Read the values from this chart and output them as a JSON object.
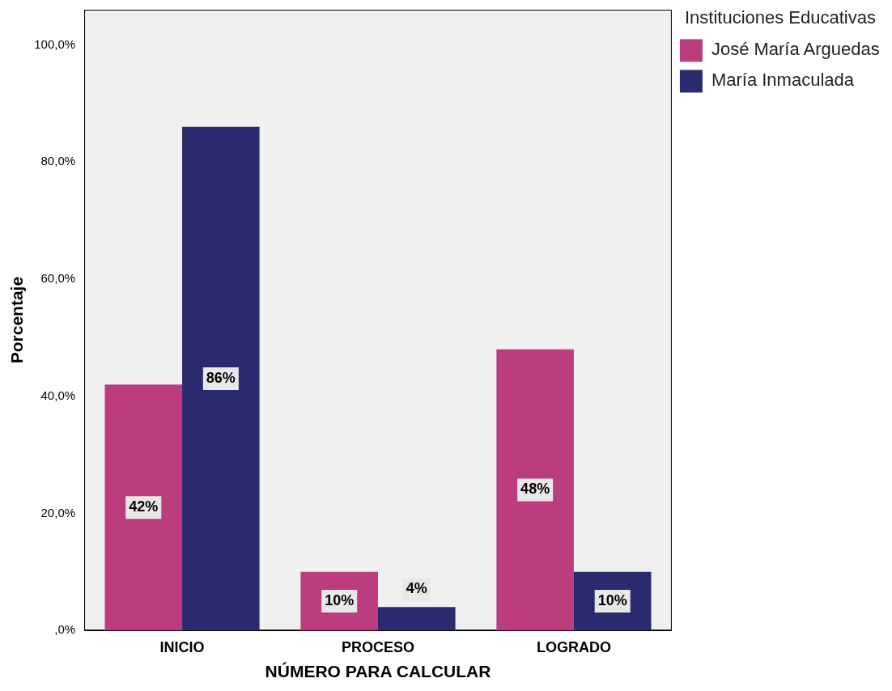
{
  "chart_data": {
    "type": "bar",
    "xlabel": "NÚMERO PARA CALCULAR",
    "ylabel": "Porcentaje",
    "legend_title": "Instituciones Educativas",
    "categories": [
      "INICIO",
      "PROCESO",
      "LOGRADO"
    ],
    "series": [
      {
        "name": "José María Arguedas",
        "color": "#bc3d7c",
        "values": [
          42,
          10,
          48
        ],
        "value_labels": [
          "42%",
          "10%",
          "48%"
        ]
      },
      {
        "name": "María Inmaculada",
        "color": "#2a2a6e",
        "values": [
          86,
          4,
          10
        ],
        "value_labels": [
          "86%",
          "4%",
          "10%"
        ]
      }
    ],
    "ylim": [
      0,
      106
    ],
    "yticks": [
      {
        "value": 0,
        "label": ",0%"
      },
      {
        "value": 20,
        "label": "20,0%"
      },
      {
        "value": 40,
        "label": "40,0%"
      },
      {
        "value": 60,
        "label": "60,0%"
      },
      {
        "value": 80,
        "label": "80,0%"
      },
      {
        "value": 100,
        "label": "100,0%"
      }
    ],
    "grid": false,
    "legend": "right"
  }
}
